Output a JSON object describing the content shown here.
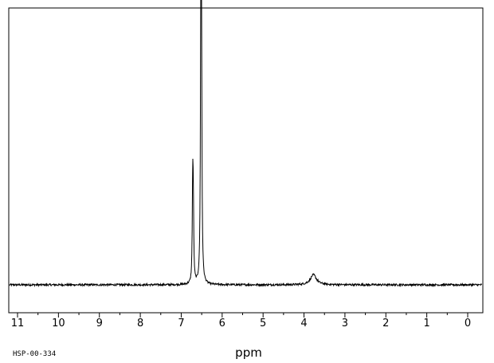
{
  "spectrum_code": "HSP-00-334",
  "chart_data": {
    "type": "line",
    "title": "",
    "xlabel": "ppm",
    "ylabel": "",
    "xlim": [
      11.1,
      -0.35
    ],
    "x_reversed": true,
    "ylim": [
      -0.12,
      1.05
    ],
    "grid": false,
    "ticks": [
      11,
      10,
      9,
      8,
      7,
      6,
      5,
      4,
      3,
      2,
      1,
      0
    ],
    "tick_labels": [
      "11",
      "10",
      "9",
      "8",
      "7",
      "6",
      "5",
      "4",
      "3",
      "2",
      "1",
      "0"
    ],
    "series": [
      {
        "peaks": [
          {
            "ppm": 6.72,
            "height": 0.375,
            "width": 0.012
          },
          {
            "ppm": 6.705,
            "height": 0.28,
            "width": 0.012
          },
          {
            "ppm": 6.52,
            "height": 1.0,
            "width": 0.012
          },
          {
            "ppm": 6.505,
            "height": 0.84,
            "width": 0.012
          },
          {
            "ppm": 3.77,
            "height": 0.04,
            "width": 0.09
          }
        ],
        "noise": 0.004
      }
    ]
  }
}
